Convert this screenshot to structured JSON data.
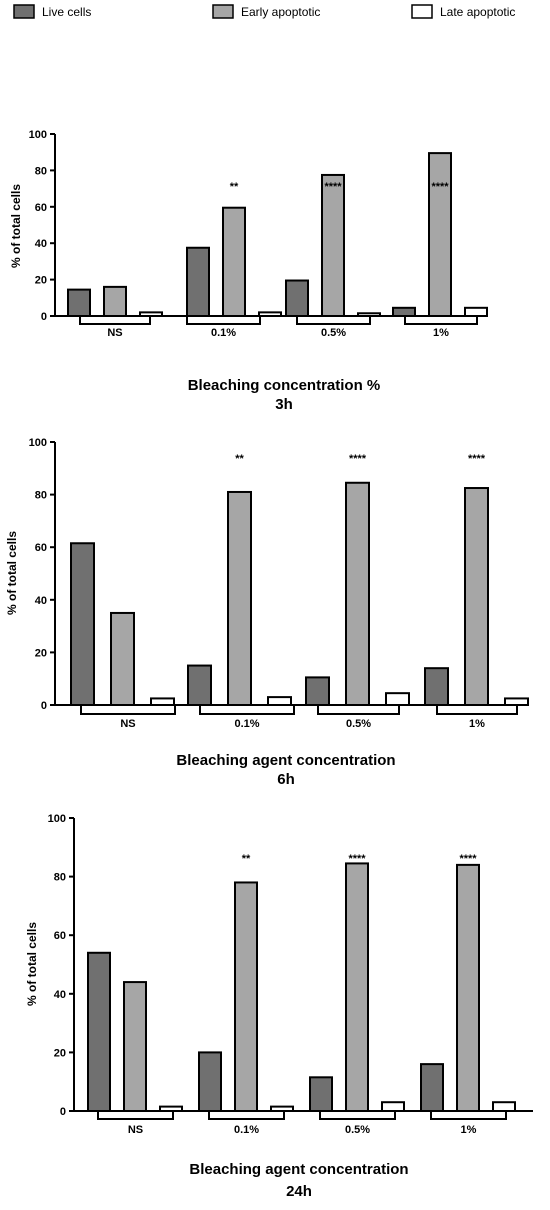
{
  "legend": [
    {
      "label": "Live cells",
      "color": "#707070"
    },
    {
      "label": "Early apoptotic",
      "color": "#a6a6a6"
    },
    {
      "label": "Late apoptotic",
      "color": "#ffffff"
    }
  ],
  "chart_data": [
    {
      "type": "bar",
      "categories": [
        "NS",
        "0.1%",
        "0.5%",
        "1%"
      ],
      "series": [
        {
          "name": "Live cells",
          "values": [
            14.5,
            37.5,
            19.5,
            4.5
          ]
        },
        {
          "name": "Early apoptotic",
          "values": [
            16,
            59.5,
            77.5,
            89.5
          ]
        },
        {
          "name": "Late apoptotic",
          "values": [
            2,
            2,
            1.5,
            4.5
          ]
        }
      ],
      "significance": [
        "",
        "**",
        "****",
        "****"
      ],
      "ylabel": "% of total cells",
      "xlabel": "Bleaching concentration %",
      "subtitle": "3h",
      "ylim": [
        0,
        100
      ],
      "yticks": [
        0,
        20,
        40,
        60,
        80,
        100
      ],
      "grid": false,
      "legend": "top"
    },
    {
      "type": "bar",
      "categories": [
        "NS",
        "0.1%",
        "0.5%",
        "1%"
      ],
      "series": [
        {
          "name": "Live cells",
          "values": [
            61.5,
            15,
            10.5,
            14
          ]
        },
        {
          "name": "Early apoptotic",
          "values": [
            35,
            81,
            84.5,
            82.5
          ]
        },
        {
          "name": "Late apoptotic",
          "values": [
            2.5,
            3,
            4.5,
            2.5
          ]
        }
      ],
      "significance": [
        "",
        "**",
        "****",
        "****"
      ],
      "ylabel": "% of total cells",
      "xlabel": "Bleaching agent concentration",
      "subtitle": "6h",
      "ylim": [
        0,
        100
      ],
      "yticks": [
        0,
        20,
        40,
        60,
        80,
        100
      ],
      "grid": false,
      "legend": "top"
    },
    {
      "type": "bar",
      "categories": [
        "NS",
        "0.1%",
        "0.5%",
        "1%"
      ],
      "series": [
        {
          "name": "Live cells",
          "values": [
            54,
            20,
            11.5,
            16
          ]
        },
        {
          "name": "Early apoptotic",
          "values": [
            44,
            78,
            84.5,
            84
          ]
        },
        {
          "name": "Late apoptotic",
          "values": [
            1.5,
            1.5,
            3,
            3
          ]
        }
      ],
      "significance": [
        "",
        "**",
        "****",
        "****"
      ],
      "ylabel": "% of total cells",
      "xlabel": "Bleaching agent concentration",
      "subtitle": "24h",
      "ylim": [
        0,
        100
      ],
      "yticks": [
        0,
        20,
        40,
        60,
        80,
        100
      ],
      "grid": false,
      "legend": "top"
    }
  ]
}
